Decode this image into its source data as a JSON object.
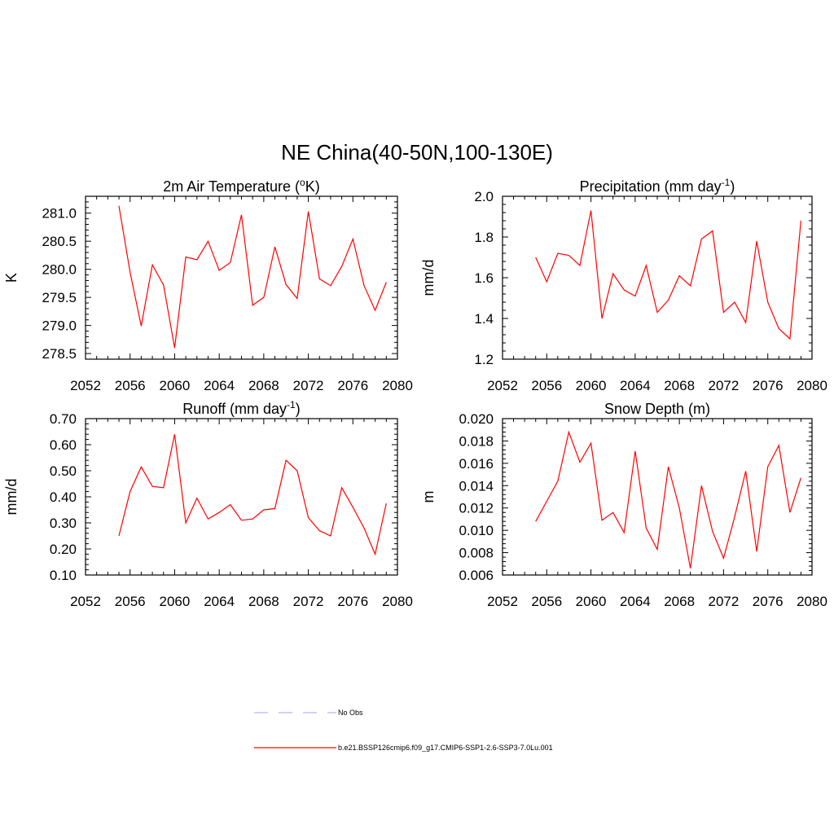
{
  "figure_title": "NE China(40-50N,100-130E)",
  "legend": {
    "items": [
      {
        "label": "No Obs",
        "color": "#b3b3f2",
        "style": "dashed"
      },
      {
        "label": "b.e21.BSSP126cmip6.f09_g17.CMIP6-SSP1-2.6-SSP3-7.0Lu.001",
        "color": "#ff0000",
        "style": "solid"
      }
    ]
  },
  "chart_data": [
    {
      "type": "line",
      "title_main": "2m Air Temperature (",
      "title_sup": "o",
      "title_tail": "K)",
      "ylabel": "K",
      "xlim": [
        2052,
        2080
      ],
      "ylim": [
        278.4,
        281.3
      ],
      "xticks": [
        "2052",
        "2056",
        "2060",
        "2064",
        "2068",
        "2072",
        "2076",
        "2080"
      ],
      "yticks": [
        "278.5",
        "279.0",
        "279.5",
        "280.0",
        "280.5",
        "281.0"
      ],
      "series": [
        {
          "color": "#ff0000",
          "x": [
            2055,
            2056,
            2057,
            2058,
            2059,
            2060,
            2061,
            2062,
            2063,
            2064,
            2065,
            2066,
            2067,
            2068,
            2069,
            2070,
            2071,
            2072,
            2073,
            2074,
            2075,
            2076,
            2077,
            2078,
            2079
          ],
          "y": [
            281.13,
            279.95,
            278.99,
            280.08,
            279.72,
            278.6,
            280.22,
            280.17,
            280.5,
            279.98,
            280.12,
            280.97,
            279.36,
            279.5,
            280.4,
            279.73,
            279.48,
            281.03,
            279.83,
            279.71,
            280.05,
            280.54,
            279.71,
            279.27,
            279.77
          ]
        }
      ]
    },
    {
      "type": "line",
      "title_main": "Precipitation (mm day",
      "title_sup": "-1",
      "title_tail": ")",
      "ylabel": "mm/d",
      "xlim": [
        2052,
        2080
      ],
      "ylim": [
        1.2,
        2.0
      ],
      "xticks": [
        "2052",
        "2056",
        "2060",
        "2064",
        "2068",
        "2072",
        "2076",
        "2080"
      ],
      "yticks": [
        "1.2",
        "1.4",
        "1.6",
        "1.8",
        "2.0"
      ],
      "series": [
        {
          "color": "#ff0000",
          "x": [
            2055,
            2056,
            2057,
            2058,
            2059,
            2060,
            2061,
            2062,
            2063,
            2064,
            2065,
            2066,
            2067,
            2068,
            2069,
            2070,
            2071,
            2072,
            2073,
            2074,
            2075,
            2076,
            2077,
            2078,
            2079
          ],
          "y": [
            1.7,
            1.58,
            1.72,
            1.71,
            1.66,
            1.93,
            1.4,
            1.62,
            1.54,
            1.51,
            1.66,
            1.43,
            1.49,
            1.61,
            1.56,
            1.79,
            1.83,
            1.43,
            1.48,
            1.38,
            1.78,
            1.48,
            1.35,
            1.3,
            1.88
          ]
        }
      ]
    },
    {
      "type": "line",
      "title_main": "Runoff (mm day",
      "title_sup": "-1",
      "title_tail": ")",
      "ylabel": "mm/d",
      "xlim": [
        2052,
        2080
      ],
      "ylim": [
        0.1,
        0.7
      ],
      "xticks": [
        "2052",
        "2056",
        "2060",
        "2064",
        "2068",
        "2072",
        "2076",
        "2080"
      ],
      "yticks": [
        "0.10",
        "0.20",
        "0.30",
        "0.40",
        "0.50",
        "0.60",
        "0.70"
      ],
      "series": [
        {
          "color": "#ff0000",
          "x": [
            2055,
            2056,
            2057,
            2058,
            2059,
            2060,
            2061,
            2062,
            2063,
            2064,
            2065,
            2066,
            2067,
            2068,
            2069,
            2070,
            2071,
            2072,
            2073,
            2074,
            2075,
            2076,
            2077,
            2078,
            2079
          ],
          "y": [
            0.25,
            0.42,
            0.515,
            0.44,
            0.435,
            0.64,
            0.3,
            0.395,
            0.315,
            0.34,
            0.37,
            0.31,
            0.315,
            0.35,
            0.355,
            0.54,
            0.5,
            0.32,
            0.27,
            0.25,
            0.435,
            0.36,
            0.28,
            0.18,
            0.375
          ]
        }
      ]
    },
    {
      "type": "line",
      "title_main": "Snow Depth (m)",
      "title_sup": "",
      "title_tail": "",
      "ylabel": "m",
      "xlim": [
        2052,
        2080
      ],
      "ylim": [
        0.006,
        0.02
      ],
      "xticks": [
        "2052",
        "2056",
        "2060",
        "2064",
        "2068",
        "2072",
        "2076",
        "2080"
      ],
      "yticks": [
        "0.006",
        "0.008",
        "0.010",
        "0.012",
        "0.014",
        "0.016",
        "0.018",
        "0.020"
      ],
      "series": [
        {
          "color": "#ff0000",
          "x": [
            2055,
            2056,
            2057,
            2058,
            2059,
            2060,
            2061,
            2062,
            2063,
            2064,
            2065,
            2066,
            2067,
            2068,
            2069,
            2070,
            2071,
            2072,
            2073,
            2074,
            2075,
            2076,
            2077,
            2078,
            2079
          ],
          "y": [
            0.0108,
            0.0126,
            0.0144,
            0.0188,
            0.0161,
            0.0178,
            0.0109,
            0.0116,
            0.0098,
            0.0171,
            0.0102,
            0.0083,
            0.0157,
            0.012,
            0.0066,
            0.014,
            0.0099,
            0.0075,
            0.0112,
            0.0153,
            0.0081,
            0.0157,
            0.0176,
            0.0116,
            0.0147
          ]
        }
      ]
    }
  ]
}
